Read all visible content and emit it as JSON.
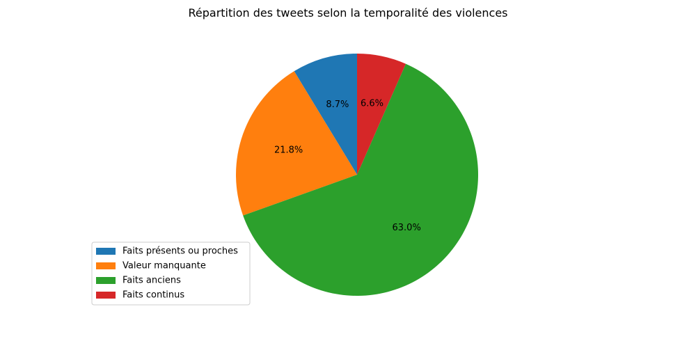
{
  "chart_data": {
    "type": "pie",
    "title": "Répartition des tweets selon la temporalité des violences",
    "start_angle_deg": 90,
    "direction": "counterclockwise",
    "legend_position": "lower-left",
    "slices": [
      {
        "label": "Faits présents ou proches",
        "value": 8.7,
        "pct_label": "8.7%",
        "color": "#1f77b4"
      },
      {
        "label": "Valeur manquante",
        "value": 21.8,
        "pct_label": "21.8%",
        "color": "#ff7f0e"
      },
      {
        "label": "Faits anciens",
        "value": 63.0,
        "pct_label": "63.0%",
        "color": "#2ca02c"
      },
      {
        "label": "Faits continus",
        "value": 6.6,
        "pct_label": "6.6%",
        "color": "#d62728"
      }
    ]
  }
}
